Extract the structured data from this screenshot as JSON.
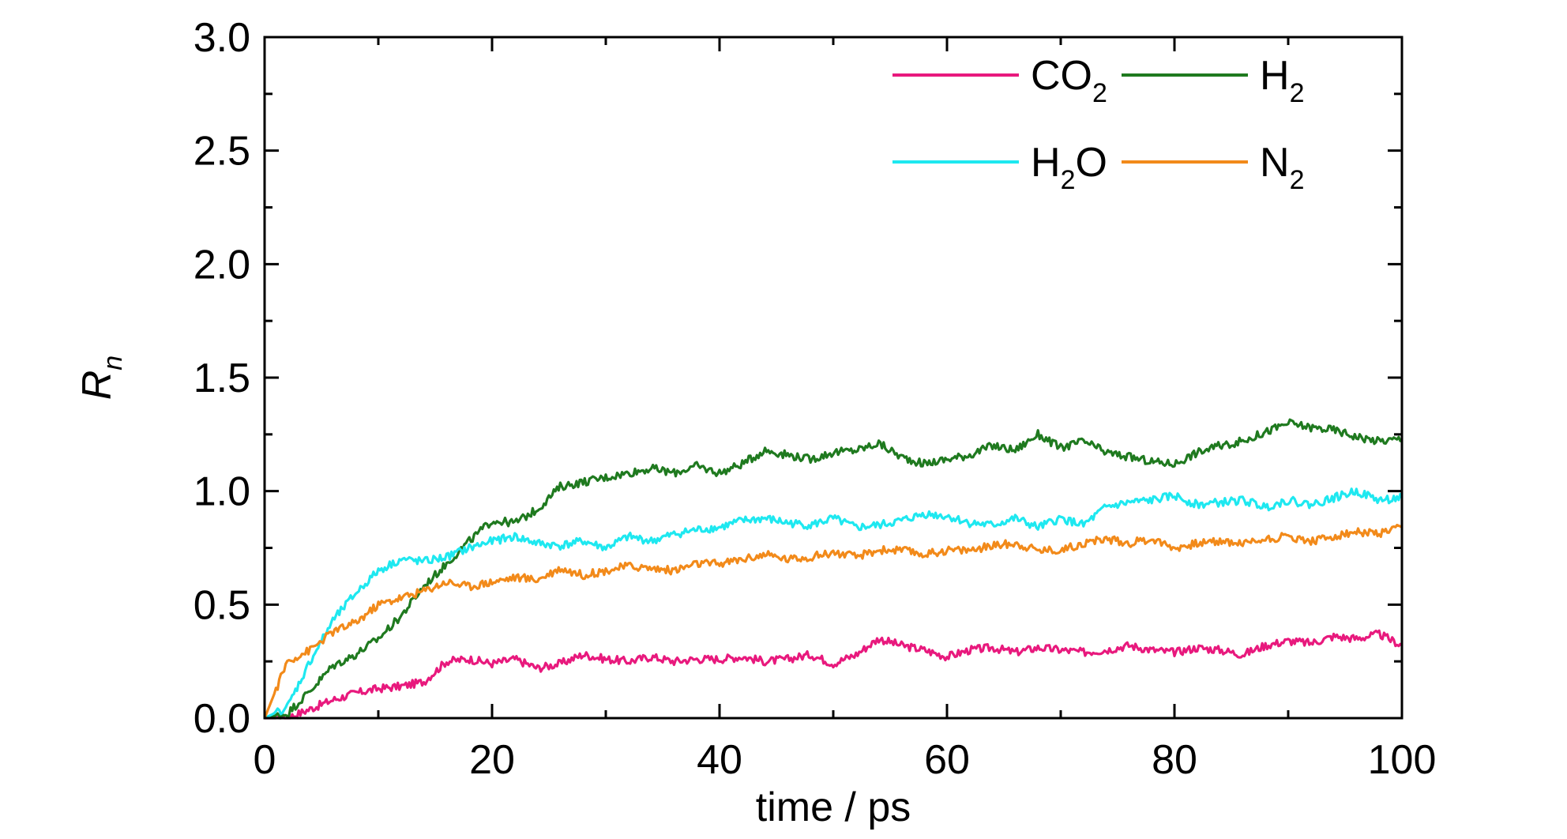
{
  "chart_data": {
    "type": "line",
    "title": "",
    "xlabel": "time / ps",
    "ylabel_main": "R",
    "ylabel_sub": "n",
    "xlim": [
      0,
      100
    ],
    "ylim": [
      0,
      3.0
    ],
    "x_ticks": [
      0,
      20,
      40,
      60,
      80,
      100
    ],
    "x_tick_labels": [
      "0",
      "20",
      "40",
      "60",
      "80",
      "100"
    ],
    "y_ticks": [
      0.0,
      0.5,
      1.0,
      1.5,
      2.0,
      2.5,
      3.0
    ],
    "y_tick_labels": [
      "0.0",
      "0.5",
      "1.0",
      "1.5",
      "2.0",
      "2.5",
      "3.0"
    ],
    "grid": false,
    "legend_position": "top-right",
    "series": [
      {
        "key": "co2",
        "label_main": "CO",
        "label_sub": "2",
        "label_tail": "",
        "color": "#e8197d",
        "x": [
          0,
          2,
          4,
          6,
          8,
          10,
          12,
          14,
          16,
          18,
          20,
          22,
          24,
          26,
          28,
          30,
          32,
          34,
          36,
          38,
          40,
          42,
          44,
          46,
          48,
          50,
          52,
          54,
          56,
          58,
          60,
          62,
          64,
          66,
          68,
          70,
          72,
          74,
          76,
          78,
          80,
          82,
          84,
          86,
          88,
          90,
          92,
          94,
          96,
          98,
          100
        ],
        "values": [
          0,
          0.0,
          0.04,
          0.08,
          0.11,
          0.13,
          0.14,
          0.16,
          0.25,
          0.26,
          0.24,
          0.26,
          0.22,
          0.24,
          0.28,
          0.26,
          0.25,
          0.27,
          0.25,
          0.26,
          0.26,
          0.27,
          0.25,
          0.26,
          0.28,
          0.24,
          0.28,
          0.35,
          0.32,
          0.3,
          0.27,
          0.3,
          0.31,
          0.29,
          0.31,
          0.3,
          0.29,
          0.3,
          0.32,
          0.3,
          0.29,
          0.31,
          0.3,
          0.28,
          0.32,
          0.34,
          0.33,
          0.36,
          0.35,
          0.37,
          0.32
        ]
      },
      {
        "key": "h2",
        "label_main": "H",
        "label_sub": "2",
        "label_tail": "",
        "color": "#1f7a1f",
        "x": [
          0,
          2,
          4,
          6,
          8,
          10,
          12,
          14,
          16,
          18,
          20,
          22,
          24,
          26,
          28,
          30,
          32,
          34,
          36,
          38,
          40,
          42,
          44,
          46,
          48,
          50,
          52,
          54,
          56,
          58,
          60,
          62,
          64,
          66,
          68,
          70,
          72,
          74,
          76,
          78,
          80,
          82,
          84,
          86,
          88,
          90,
          92,
          94,
          96,
          98,
          100
        ],
        "values": [
          0,
          0.02,
          0.12,
          0.23,
          0.28,
          0.35,
          0.45,
          0.58,
          0.68,
          0.78,
          0.87,
          0.86,
          0.92,
          1.02,
          1.04,
          1.06,
          1.08,
          1.1,
          1.08,
          1.11,
          1.08,
          1.12,
          1.18,
          1.16,
          1.14,
          1.17,
          1.18,
          1.21,
          1.15,
          1.12,
          1.14,
          1.16,
          1.2,
          1.18,
          1.25,
          1.19,
          1.22,
          1.17,
          1.15,
          1.13,
          1.12,
          1.17,
          1.2,
          1.22,
          1.26,
          1.3,
          1.28,
          1.27,
          1.24,
          1.22,
          1.23
        ]
      },
      {
        "key": "h2o",
        "label_main": "H",
        "label_sub": "2",
        "label_tail": "O",
        "color": "#1ee8f0",
        "x": [
          0,
          2,
          4,
          6,
          8,
          10,
          12,
          14,
          16,
          18,
          20,
          22,
          24,
          26,
          28,
          30,
          32,
          34,
          36,
          38,
          40,
          42,
          44,
          46,
          48,
          50,
          52,
          54,
          56,
          58,
          60,
          62,
          64,
          66,
          68,
          70,
          72,
          74,
          76,
          78,
          80,
          82,
          84,
          86,
          88,
          90,
          92,
          94,
          96,
          98,
          100
        ],
        "values": [
          0,
          0.05,
          0.25,
          0.43,
          0.55,
          0.65,
          0.7,
          0.69,
          0.71,
          0.75,
          0.78,
          0.8,
          0.77,
          0.76,
          0.78,
          0.75,
          0.8,
          0.78,
          0.81,
          0.83,
          0.84,
          0.87,
          0.88,
          0.86,
          0.85,
          0.88,
          0.84,
          0.85,
          0.87,
          0.9,
          0.89,
          0.86,
          0.85,
          0.88,
          0.84,
          0.88,
          0.85,
          0.93,
          0.95,
          0.96,
          0.98,
          0.94,
          0.95,
          0.96,
          0.93,
          0.96,
          0.94,
          0.97,
          1.0,
          0.96,
          0.97
        ]
      },
      {
        "key": "n2",
        "label_main": "N",
        "label_sub": "2",
        "label_tail": "",
        "color": "#f28a1a",
        "x": [
          0,
          2,
          4,
          6,
          8,
          10,
          12,
          14,
          16,
          18,
          20,
          22,
          24,
          26,
          28,
          30,
          32,
          34,
          36,
          38,
          40,
          42,
          44,
          46,
          48,
          50,
          52,
          54,
          56,
          58,
          60,
          62,
          64,
          66,
          68,
          70,
          72,
          74,
          76,
          78,
          80,
          82,
          84,
          86,
          88,
          90,
          92,
          94,
          96,
          98,
          100
        ],
        "values": [
          0,
          0.25,
          0.3,
          0.38,
          0.42,
          0.5,
          0.53,
          0.56,
          0.6,
          0.58,
          0.6,
          0.62,
          0.61,
          0.66,
          0.63,
          0.65,
          0.67,
          0.66,
          0.65,
          0.68,
          0.68,
          0.7,
          0.72,
          0.7,
          0.71,
          0.73,
          0.71,
          0.74,
          0.74,
          0.72,
          0.74,
          0.74,
          0.76,
          0.77,
          0.74,
          0.74,
          0.77,
          0.79,
          0.77,
          0.79,
          0.75,
          0.77,
          0.78,
          0.77,
          0.79,
          0.8,
          0.78,
          0.8,
          0.82,
          0.81,
          0.84
        ]
      }
    ]
  }
}
